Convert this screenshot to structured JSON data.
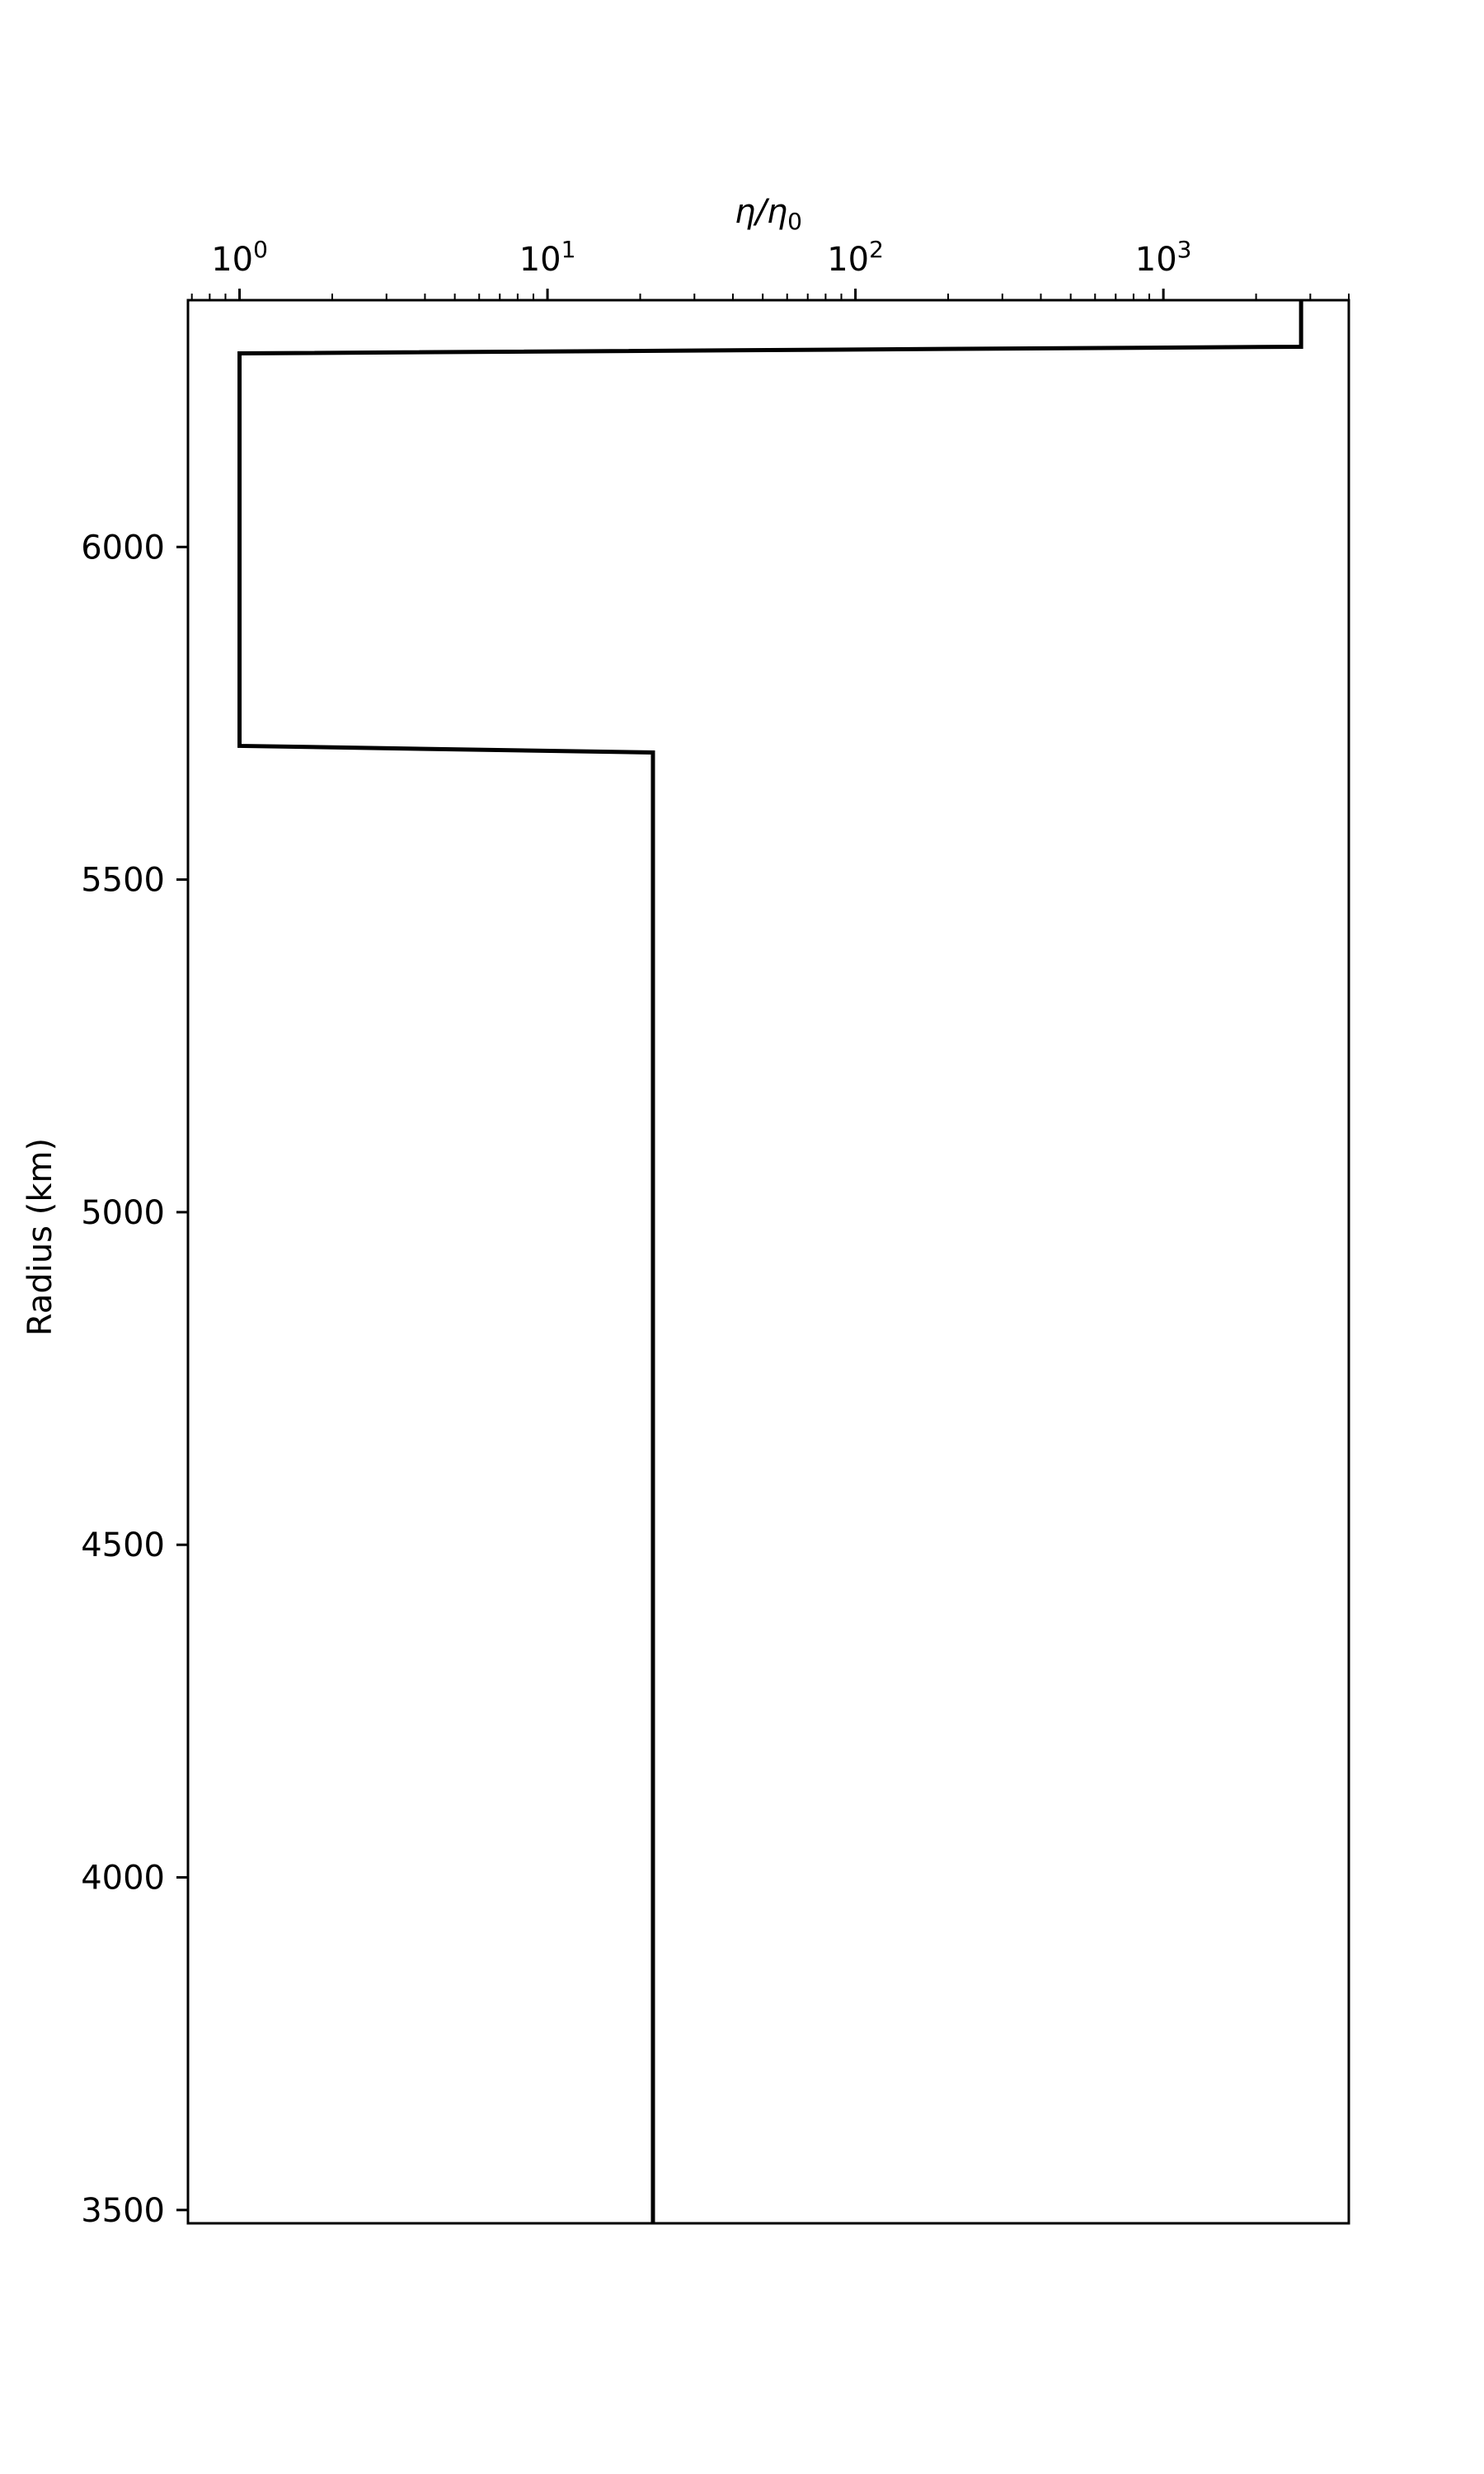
{
  "chart_data": {
    "type": "line",
    "title": "",
    "xlabel": "η/η",
    "xlabel_sub": "0",
    "ylabel": "Radius (km)",
    "x_scale": "log",
    "x_axis_position": "top",
    "xlim": [
      0.68,
      4000
    ],
    "ylim": [
      3480,
      6371
    ],
    "grid": false,
    "x_ticks": [
      {
        "value": 1,
        "base": "10",
        "exp": "0"
      },
      {
        "value": 10,
        "base": "10",
        "exp": "1"
      },
      {
        "value": 100,
        "base": "10",
        "exp": "2"
      },
      {
        "value": 1000,
        "base": "10",
        "exp": "3"
      }
    ],
    "y_ticks": [
      3500,
      4000,
      4500,
      5000,
      5500,
      6000
    ],
    "series": [
      {
        "name": "",
        "color": "#000000",
        "points": [
          {
            "x": 2800,
            "y": 6371
          },
          {
            "x": 2800,
            "y": 6301
          },
          {
            "x": 1,
            "y": 6291
          },
          {
            "x": 1,
            "y": 5701
          },
          {
            "x": 22,
            "y": 5691
          },
          {
            "x": 22,
            "y": 3480
          }
        ]
      }
    ]
  }
}
